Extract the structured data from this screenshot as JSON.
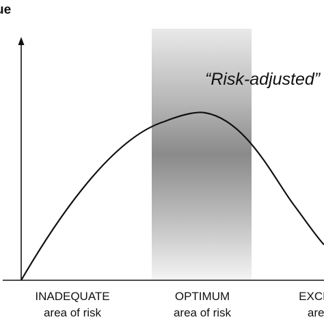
{
  "diagram": {
    "y_axis_label_fragment": "ue",
    "curve_label": "“Risk-adjusted”",
    "zones": [
      {
        "id": "inadequate",
        "title": "INADEQUATE",
        "subtitle": "area of risk"
      },
      {
        "id": "optimum",
        "title": "OPTIMUM",
        "subtitle": "area of risk"
      },
      {
        "id": "excessive",
        "title": "EXCESSI",
        "subtitle": "area o"
      }
    ],
    "colors": {
      "axis": "#111111",
      "curve": "#111111",
      "band_light": "#e6e6e6",
      "band_dark": "#8a8a8a"
    }
  }
}
